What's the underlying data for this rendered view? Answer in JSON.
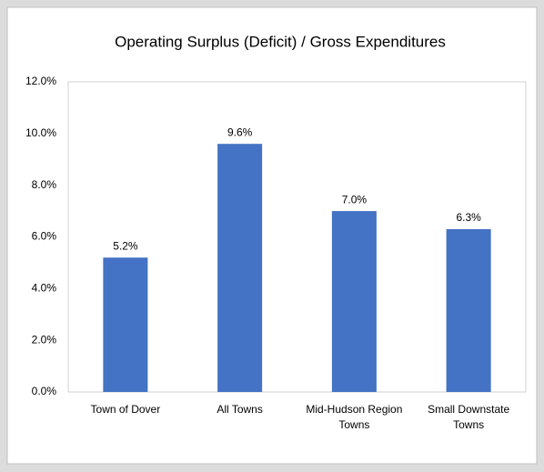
{
  "chart_data": {
    "type": "bar",
    "title": "Operating Surplus (Deficit) / Gross Expenditures",
    "categories": [
      "Town of Dover",
      "All Towns",
      "Mid-Hudson Region Towns",
      "Small Downstate Towns"
    ],
    "values": [
      5.2,
      9.6,
      7.0,
      6.3
    ],
    "value_labels": [
      "5.2%",
      "9.6%",
      "7.0%",
      "6.3%"
    ],
    "color": "#4472c4",
    "ylim": [
      0,
      12
    ],
    "yticks": [
      {
        "value": 0,
        "label": "0.0%"
      },
      {
        "value": 2,
        "label": "2.0%"
      },
      {
        "value": 4,
        "label": "4.0%"
      },
      {
        "value": 6,
        "label": "6.0%"
      },
      {
        "value": 8,
        "label": "8.0%"
      },
      {
        "value": 10,
        "label": "10.0%"
      },
      {
        "value": 12,
        "label": "12.0%"
      }
    ],
    "grid": false
  }
}
